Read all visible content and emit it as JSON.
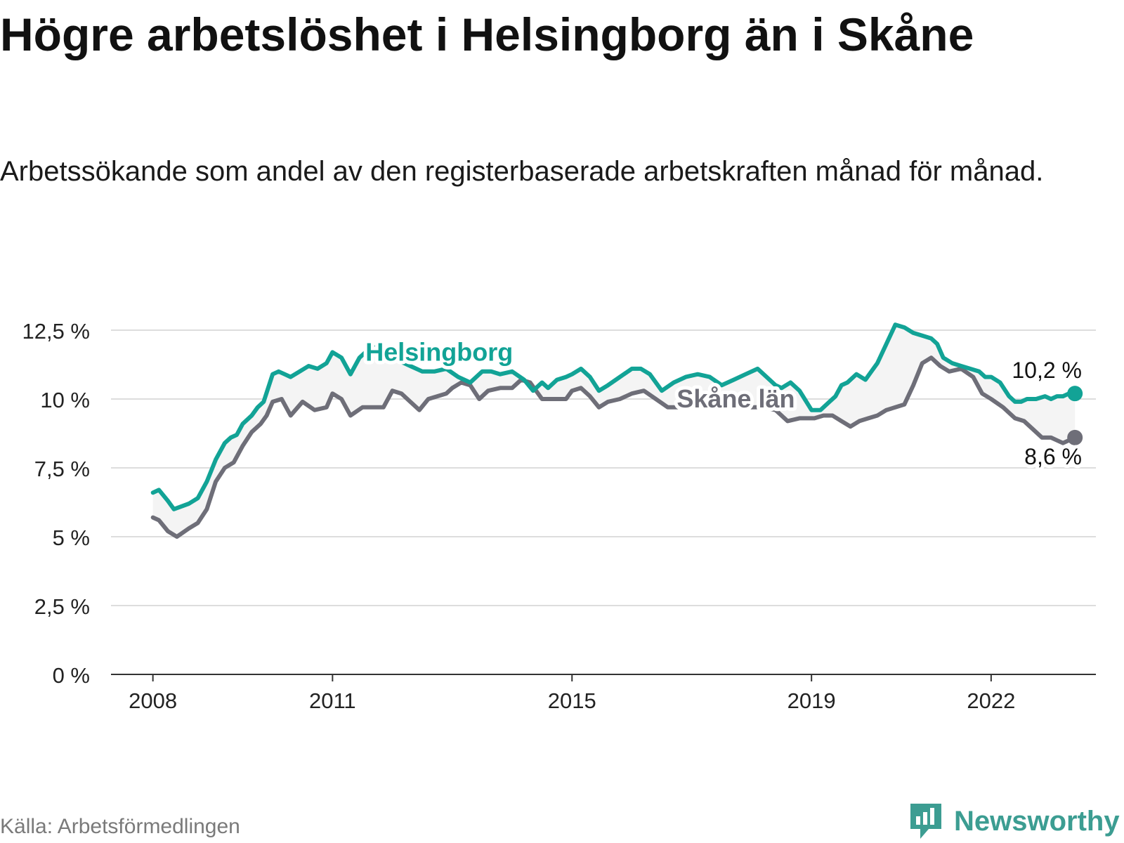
{
  "title": "Högre arbetslöshet i Helsingborg än i Skåne",
  "subtitle": "Arbetssökande som andel av den registerbaserade arbetskraften månad för månad.",
  "source": "Källa: Arbetsförmedlingen",
  "brand": "Newsworthy",
  "colors": {
    "helsingborg": "#12a396",
    "skane": "#6e6e78",
    "band": "#f4f4f4",
    "grid": "#dddddd",
    "axis": "#333333",
    "brand": "#3c9d92"
  },
  "chart_data": {
    "type": "line",
    "title": "Högre arbetslöshet i Helsingborg än i Skåne",
    "xlabel": "",
    "ylabel": "",
    "xlim": [
      2007.3,
      2023.75
    ],
    "ylim": [
      0,
      12.5
    ],
    "y_ticks": [
      0,
      2.5,
      5,
      7.5,
      10,
      12.5
    ],
    "y_tick_labels": [
      "0 %",
      "2,5 %",
      "5 %",
      "7,5 %",
      "10 %",
      "12,5 %"
    ],
    "x_ticks": [
      2008,
      2011,
      2015,
      2019,
      2022
    ],
    "x_tick_labels": [
      "2008",
      "2011",
      "2015",
      "2019",
      "2022"
    ],
    "grid": true,
    "series": [
      {
        "name": "Helsingborg",
        "label": "Helsingborg",
        "end_label": "10,2 %",
        "x": [
          2008.0,
          2008.1,
          2008.25,
          2008.35,
          2008.6,
          2008.75,
          2008.9,
          2009.05,
          2009.2,
          2009.3,
          2009.4,
          2009.5,
          2009.65,
          2009.75,
          2009.85,
          2010.0,
          2010.1,
          2010.2,
          2010.3,
          2010.45,
          2010.6,
          2010.75,
          2010.9,
          2011.0,
          2011.15,
          2011.3,
          2011.45,
          2011.6,
          2011.75,
          2011.9,
          2012.1,
          2012.3,
          2012.5,
          2012.7,
          2012.9,
          2013.1,
          2013.3,
          2013.5,
          2013.65,
          2013.8,
          2014.0,
          2014.2,
          2014.35,
          2014.5,
          2014.6,
          2014.75,
          2014.9,
          2015.0,
          2015.15,
          2015.3,
          2015.45,
          2015.6,
          2015.8,
          2016.0,
          2016.15,
          2016.3,
          2016.5,
          2016.7,
          2016.9,
          2017.1,
          2017.3,
          2017.5,
          2017.7,
          2017.9,
          2018.1,
          2018.3,
          2018.4,
          2018.5,
          2018.65,
          2018.8,
          2019.0,
          2019.15,
          2019.3,
          2019.4,
          2019.5,
          2019.6,
          2019.75,
          2019.9,
          2020.0,
          2020.1,
          2020.25,
          2020.4,
          2020.55,
          2020.7,
          2020.85,
          2021.0,
          2021.1,
          2021.2,
          2021.35,
          2021.5,
          2021.65,
          2021.8,
          2021.9,
          2022.0,
          2022.15,
          2022.3,
          2022.4,
          2022.5,
          2022.6,
          2022.75,
          2022.9,
          2023.0,
          2023.1,
          2023.2,
          2023.3,
          2023.4
        ],
        "values": [
          6.6,
          6.7,
          6.3,
          6.0,
          6.2,
          6.4,
          7.0,
          7.8,
          8.4,
          8.6,
          8.7,
          9.1,
          9.4,
          9.7,
          9.9,
          10.9,
          11.0,
          10.9,
          10.8,
          11.0,
          11.2,
          11.1,
          11.3,
          11.7,
          11.5,
          10.9,
          11.5,
          11.8,
          11.9,
          11.6,
          11.4,
          11.2,
          11.0,
          11.0,
          11.1,
          10.8,
          10.6,
          11.0,
          11.0,
          10.9,
          11.0,
          10.7,
          10.3,
          10.6,
          10.4,
          10.7,
          10.8,
          10.9,
          11.1,
          10.8,
          10.3,
          10.5,
          10.8,
          11.1,
          11.1,
          10.9,
          10.3,
          10.6,
          10.8,
          10.9,
          10.8,
          10.5,
          10.7,
          10.9,
          11.1,
          10.7,
          10.5,
          10.4,
          10.6,
          10.3,
          9.6,
          9.6,
          9.9,
          10.1,
          10.5,
          10.6,
          10.9,
          10.7,
          11.0,
          11.3,
          12.0,
          12.7,
          12.6,
          12.4,
          12.3,
          12.2,
          12.0,
          11.5,
          11.3,
          11.2,
          11.1,
          11.0,
          10.8,
          10.8,
          10.6,
          10.1,
          9.9,
          9.9,
          10.0,
          10.0,
          10.1,
          10.0,
          10.1,
          10.1,
          10.2,
          10.2
        ]
      },
      {
        "name": "Skåne län",
        "label": "Skåne län",
        "end_label": "8,6 %",
        "x": [
          2008.0,
          2008.1,
          2008.25,
          2008.4,
          2008.6,
          2008.75,
          2008.9,
          2009.05,
          2009.2,
          2009.35,
          2009.5,
          2009.65,
          2009.8,
          2009.9,
          2010.0,
          2010.15,
          2010.3,
          2010.5,
          2010.7,
          2010.9,
          2011.0,
          2011.15,
          2011.3,
          2011.5,
          2011.7,
          2011.85,
          2012.0,
          2012.15,
          2012.3,
          2012.45,
          2012.6,
          2012.75,
          2012.9,
          2013.0,
          2013.15,
          2013.3,
          2013.45,
          2013.6,
          2013.8,
          2014.0,
          2014.15,
          2014.3,
          2014.5,
          2014.7,
          2014.9,
          2015.0,
          2015.15,
          2015.3,
          2015.45,
          2015.6,
          2015.8,
          2016.0,
          2016.2,
          2016.4,
          2016.6,
          2016.8,
          2017.0,
          2017.2,
          2017.4,
          2017.6,
          2017.8,
          2018.0,
          2018.2,
          2018.4,
          2018.6,
          2018.8,
          2018.9,
          2019.05,
          2019.2,
          2019.35,
          2019.5,
          2019.65,
          2019.8,
          2019.95,
          2020.1,
          2020.25,
          2020.4,
          2020.55,
          2020.7,
          2020.85,
          2021.0,
          2021.15,
          2021.3,
          2021.5,
          2021.7,
          2021.85,
          2022.0,
          2022.2,
          2022.4,
          2022.55,
          2022.7,
          2022.85,
          2023.0,
          2023.1,
          2023.2,
          2023.3,
          2023.4
        ],
        "values": [
          5.7,
          5.6,
          5.2,
          5.0,
          5.3,
          5.5,
          6.0,
          7.0,
          7.5,
          7.7,
          8.3,
          8.8,
          9.1,
          9.4,
          9.9,
          10.0,
          9.4,
          9.9,
          9.6,
          9.7,
          10.2,
          10.0,
          9.4,
          9.7,
          9.7,
          9.7,
          10.3,
          10.2,
          9.9,
          9.6,
          10.0,
          10.1,
          10.2,
          10.4,
          10.6,
          10.5,
          10.0,
          10.3,
          10.4,
          10.4,
          10.7,
          10.6,
          10.0,
          10.0,
          10.0,
          10.3,
          10.4,
          10.1,
          9.7,
          9.9,
          10.0,
          10.2,
          10.3,
          10.0,
          9.7,
          9.7,
          9.8,
          9.9,
          9.8,
          9.7,
          9.8,
          9.7,
          9.7,
          9.6,
          9.2,
          9.3,
          9.3,
          9.3,
          9.4,
          9.4,
          9.2,
          9.0,
          9.2,
          9.3,
          9.4,
          9.6,
          9.7,
          9.8,
          10.5,
          11.3,
          11.5,
          11.2,
          11.0,
          11.1,
          10.8,
          10.2,
          10.0,
          9.7,
          9.3,
          9.2,
          8.9,
          8.6,
          8.6,
          8.5,
          8.4,
          8.5,
          8.6
        ]
      }
    ]
  }
}
